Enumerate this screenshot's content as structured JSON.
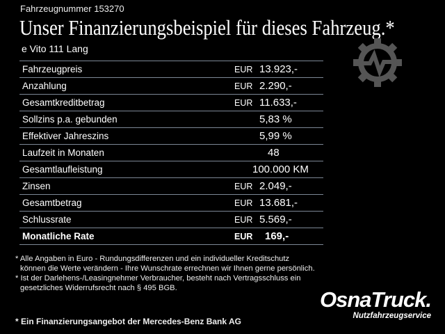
{
  "header": {
    "vehicle_number": "Fahrzeugnummer 153270",
    "title": "Unser Finanzierungsbeispiel für dieses Fahrzeug.*",
    "model": "e Vito 111 Lang"
  },
  "table": {
    "rows": [
      {
        "label": "Fahrzeugpreis",
        "currency": "EUR",
        "value": "13.923,-"
      },
      {
        "label": "Anzahlung",
        "currency": "EUR",
        "value": "2.290,-"
      },
      {
        "label": "Gesamtkreditbetrag",
        "currency": "EUR",
        "value": "11.633,-"
      },
      {
        "label": "Sollzins p.a. gebunden",
        "currency": "",
        "value": "5,83 %"
      },
      {
        "label": "Effektiver Jahreszins",
        "currency": "",
        "value": "5,99 %"
      },
      {
        "label": "Laufzeit in Monaten",
        "currency": "",
        "value": "48"
      },
      {
        "label": "Gesamtlaufleistung",
        "currency": "",
        "value": "100.000 KM"
      },
      {
        "label": "Zinsen",
        "currency": "EUR",
        "value": "2.049,-"
      },
      {
        "label": "Gesamtbetrag",
        "currency": "EUR",
        "value": "13.681,-"
      },
      {
        "label": "Schlussrate",
        "currency": "EUR",
        "value": "5.569,-"
      },
      {
        "label": "Monatliche Rate",
        "currency": "EUR",
        "value": "169,-"
      }
    ]
  },
  "notes": {
    "line1": "* Alle Angaben in Euro - Rundungsdifferenzen und ein individueller Kreditschutz",
    "line2": "können die Werte verändern - Ihre Wunschrate errechnen wir Ihnen gerne persönlich.",
    "line3": "* Ist der Darlehens-/Leasingnehmer Verbraucher, besteht nach Vertragsschluss ein",
    "line4": "gesetzliches Widerrufsrecht nach § 495 BGB."
  },
  "bank_note": "* Ein Finanzierungsangebot der Mercedes-Benz Bank AG",
  "logo": {
    "name": "OsnaTruck.",
    "subtitle": "Nutzfahrzeugservice"
  },
  "icons": {
    "watermark": "gear-pulse-icon"
  },
  "colors": {
    "background": "#000000",
    "table_lines": "#7d8896",
    "icon": "#555555"
  }
}
